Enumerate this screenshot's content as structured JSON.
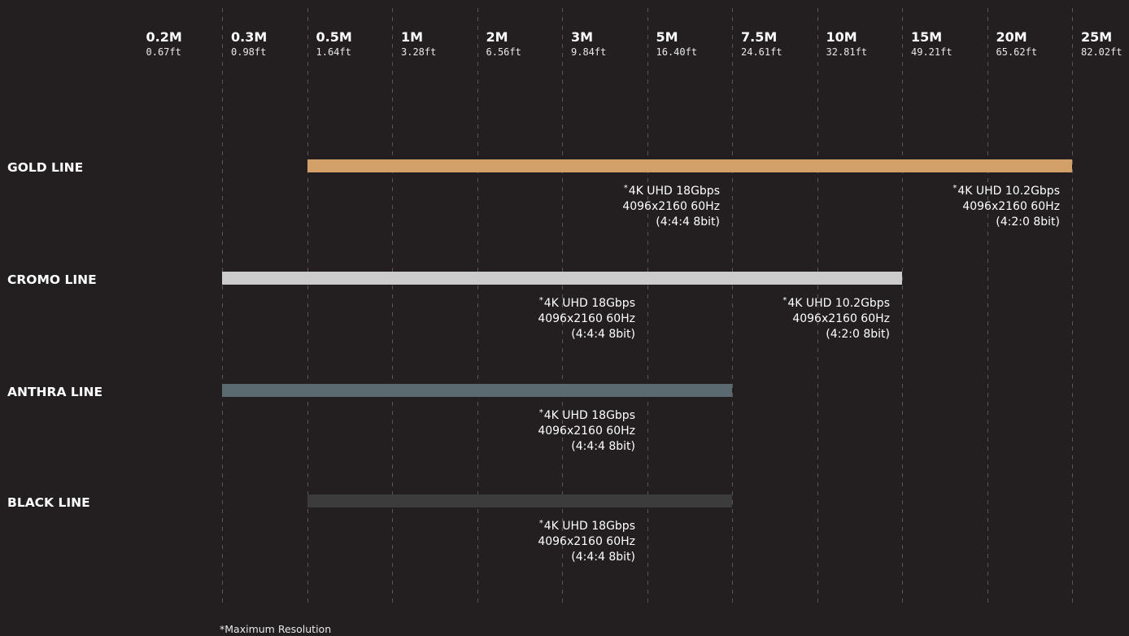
{
  "chart_data": {
    "type": "bar",
    "orientation": "horizontal",
    "axis_position": "top",
    "grid": true,
    "ticks": [
      {
        "m": "0.2M",
        "ft": "0.67ft"
      },
      {
        "m": "0.3M",
        "ft": "0.98ft"
      },
      {
        "m": "0.5M",
        "ft": "1.64ft"
      },
      {
        "m": "1M",
        "ft": "3.28ft"
      },
      {
        "m": "2M",
        "ft": "6.56ft"
      },
      {
        "m": "3M",
        "ft": "9.84ft"
      },
      {
        "m": "5M",
        "ft": "16.40ft"
      },
      {
        "m": "7.5M",
        "ft": "24.61ft"
      },
      {
        "m": "10M",
        "ft": "32.81ft"
      },
      {
        "m": "15M",
        "ft": "49.21ft"
      },
      {
        "m": "20M",
        "ft": "65.62ft"
      },
      {
        "m": "25M",
        "ft": "82.02ft"
      }
    ],
    "series": [
      {
        "name": "GOLD LINE",
        "color": "#d4a06a",
        "from": "0.5M",
        "to": "25M",
        "annotations": [
          {
            "at": "7.5M",
            "star": "*",
            "lines": [
              "4K UHD 18Gbps",
              "4096x2160 60Hz",
              "(4:4:4 8bit)"
            ]
          },
          {
            "at": "25M",
            "star": "*",
            "lines": [
              "4K UHD 10.2Gbps",
              "4096x2160 60Hz",
              "(4:2:0 8bit)"
            ]
          }
        ]
      },
      {
        "name": "CROMO LINE",
        "color": "#cccccc",
        "from": "0.3M",
        "to": "15M",
        "annotations": [
          {
            "at": "5M",
            "star": "*",
            "lines": [
              "4K UHD 18Gbps",
              "4096x2160 60Hz",
              "(4:4:4 8bit)"
            ]
          },
          {
            "at": "15M",
            "star": "*",
            "lines": [
              "4K UHD 10.2Gbps",
              "4096x2160 60Hz",
              "(4:2:0 8bit)"
            ]
          }
        ]
      },
      {
        "name": "ANTHRA LINE",
        "color": "#5b6a71",
        "from": "0.3M",
        "to": "7.5M",
        "annotations": [
          {
            "at": "5M",
            "star": "*",
            "lines": [
              "4K UHD 18Gbps",
              "4096x2160 60Hz",
              "(4:4:4 8bit)"
            ]
          }
        ]
      },
      {
        "name": "BLACK LINE",
        "color": "#3c3c3c",
        "from": "0.5M",
        "to": "7.5M",
        "annotations": [
          {
            "at": "5M",
            "star": "*",
            "lines": [
              "4K UHD 18Gbps",
              "4096x2160 60Hz",
              "(4:4:4 8bit)"
            ]
          }
        ]
      }
    ],
    "footnote": "*Maximum Resolution"
  },
  "colors": {
    "background": "#231f20",
    "gridline": "#5a5657"
  }
}
